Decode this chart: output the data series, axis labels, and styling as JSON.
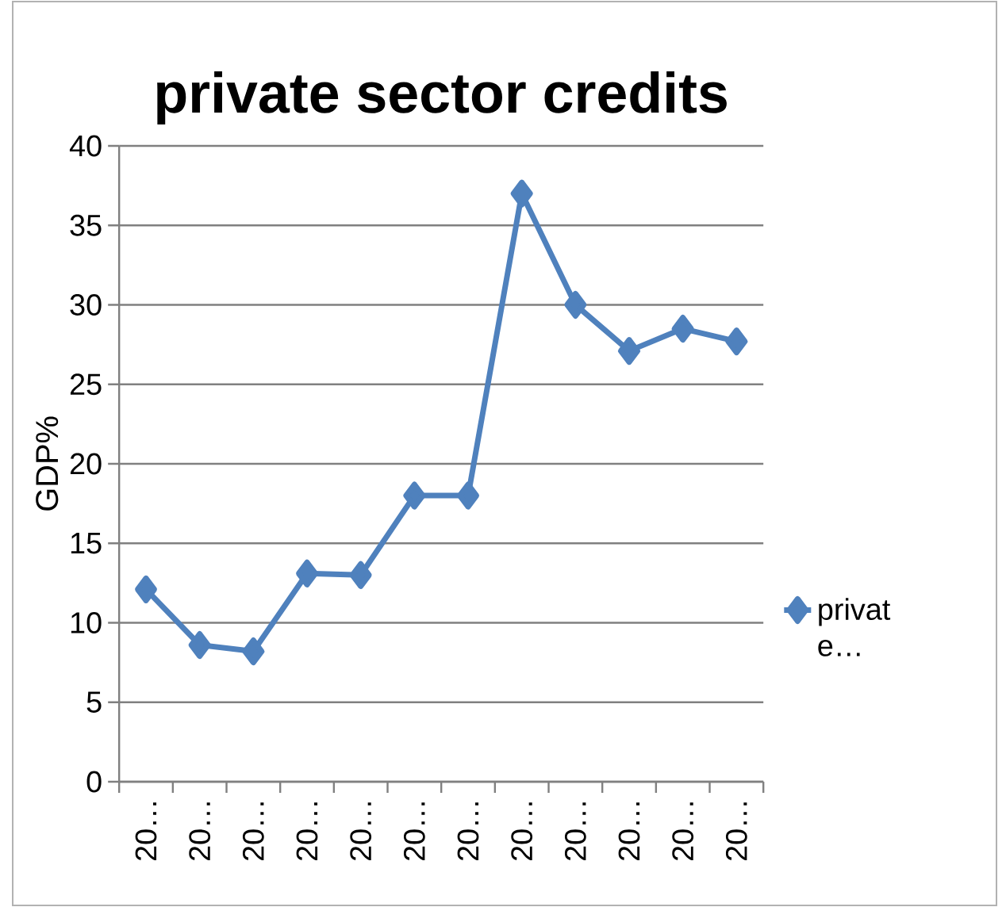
{
  "chart_data": {
    "type": "line",
    "title": "private sector credits",
    "ylabel": "GDP%",
    "categories": [
      "20…",
      "20…",
      "20…",
      "20…",
      "20…",
      "20…",
      "20…",
      "20…",
      "20…",
      "20…",
      "20…",
      "20…"
    ],
    "series": [
      {
        "name": "privat e…",
        "color": "#4f81bd",
        "values": [
          12.1,
          8.6,
          8.2,
          13.1,
          13,
          18,
          18,
          37,
          30,
          27.1,
          28.5,
          27.7
        ]
      }
    ],
    "ylim": [
      0,
      40
    ],
    "yticks": [
      0,
      5,
      10,
      15,
      20,
      25,
      30,
      35,
      40
    ],
    "grid": "y",
    "legend": "right",
    "marker": "diamond",
    "line_style": "solid"
  }
}
